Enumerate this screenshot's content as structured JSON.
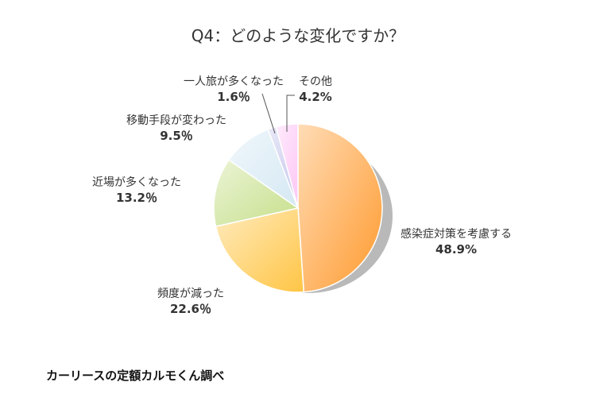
{
  "title": "Q4：どのような変化ですか？",
  "source": "カーリースの定額カルモくん調べ",
  "chart_data": {
    "type": "pie",
    "title": "Q4：どのような変化ですか？",
    "legend": "none",
    "slices": [
      {
        "label": "感染症対策を考慮する",
        "value": 48.9,
        "display": "48.9%",
        "color": "#ff9a2e"
      },
      {
        "label": "頻度が減った",
        "value": 22.6,
        "display": "22.6％",
        "color": "#ffc545"
      },
      {
        "label": "近場が多くなった",
        "value": 13.2,
        "display": "13.2％",
        "color": "#c6df8a"
      },
      {
        "label": "移動手段が変わった",
        "value": 9.5,
        "display": "9.5％",
        "color": "#d5e8f3"
      },
      {
        "label": "一人旅が多くなった",
        "value": 1.6,
        "display": "1.6％",
        "color": "#c3c3ec"
      },
      {
        "label": "その他",
        "value": 4.2,
        "display": "4.2%",
        "color": "#fcc6f5"
      }
    ]
  }
}
